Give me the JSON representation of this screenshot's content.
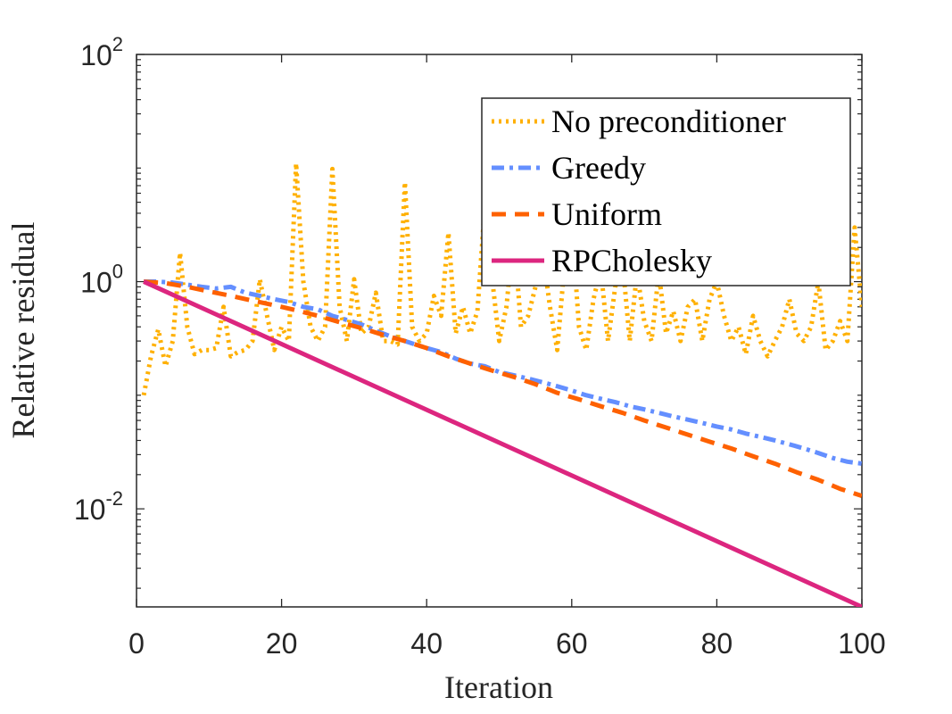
{
  "chart_data": {
    "type": "line",
    "title": "",
    "xlabel": "Iteration",
    "ylabel": "Relative residual",
    "xlim": [
      0,
      100
    ],
    "ylim": [
      0.00137,
      100
    ],
    "yscale": "log",
    "x_ticks": [
      "0",
      "20",
      "40",
      "60",
      "80",
      "100"
    ],
    "y_ticks": [
      {
        "base": "10",
        "exp": "2"
      },
      {
        "base": "10",
        "exp": "0"
      },
      {
        "base": "10",
        "exp": "-2"
      }
    ],
    "legend": "top-right",
    "grid": false,
    "series": [
      {
        "name": "No preconditioner",
        "color": "#FFB000",
        "style": "dotted",
        "points": [
          [
            1,
            0.1
          ],
          [
            2,
            0.22
          ],
          [
            3,
            0.38
          ],
          [
            4,
            0.18
          ],
          [
            5,
            0.3
          ],
          [
            6,
            1.8
          ],
          [
            7,
            0.4
          ],
          [
            8,
            0.23
          ],
          [
            9,
            0.25
          ],
          [
            10,
            0.25
          ],
          [
            11,
            0.26
          ],
          [
            12,
            0.6
          ],
          [
            13,
            0.22
          ],
          [
            14,
            0.24
          ],
          [
            15,
            0.25
          ],
          [
            16,
            0.3
          ],
          [
            17,
            1.05
          ],
          [
            18,
            0.5
          ],
          [
            19,
            0.25
          ],
          [
            20,
            0.4
          ],
          [
            21,
            0.3
          ],
          [
            22,
            11
          ],
          [
            23,
            1.0
          ],
          [
            24,
            0.4
          ],
          [
            25,
            0.3
          ],
          [
            26,
            0.4
          ],
          [
            27,
            9.8
          ],
          [
            28,
            0.6
          ],
          [
            29,
            0.3
          ],
          [
            30,
            1.05
          ],
          [
            31,
            0.35
          ],
          [
            32,
            0.4
          ],
          [
            33,
            0.8
          ],
          [
            34,
            0.3
          ],
          [
            35,
            0.3
          ],
          [
            36,
            0.28
          ],
          [
            37,
            7.5
          ],
          [
            38,
            0.4
          ],
          [
            39,
            0.3
          ],
          [
            40,
            0.35
          ],
          [
            41,
            0.75
          ],
          [
            42,
            0.5
          ],
          [
            43,
            2.7
          ],
          [
            44,
            0.35
          ],
          [
            45,
            0.6
          ],
          [
            46,
            0.35
          ],
          [
            47,
            0.55
          ],
          [
            48,
            4.5
          ],
          [
            49,
            1.1
          ],
          [
            50,
            0.3
          ],
          [
            51,
            0.6
          ],
          [
            52,
            2.8
          ],
          [
            53,
            0.4
          ],
          [
            54,
            0.5
          ],
          [
            55,
            0.9
          ],
          [
            56,
            1.8
          ],
          [
            57,
            0.6
          ],
          [
            58,
            0.25
          ],
          [
            59,
            1.4
          ],
          [
            60,
            3.2
          ],
          [
            61,
            0.4
          ],
          [
            62,
            0.25
          ],
          [
            63,
            0.7
          ],
          [
            64,
            1.3
          ],
          [
            65,
            0.3
          ],
          [
            66,
            0.9
          ],
          [
            67,
            1.5
          ],
          [
            68,
            0.3
          ],
          [
            69,
            1.2
          ],
          [
            70,
            0.45
          ],
          [
            71,
            0.3
          ],
          [
            72,
            1.2
          ],
          [
            73,
            0.35
          ],
          [
            74,
            0.55
          ],
          [
            75,
            0.3
          ],
          [
            76,
            0.6
          ],
          [
            77,
            0.7
          ],
          [
            78,
            0.3
          ],
          [
            79,
            0.7
          ],
          [
            80,
            1.0
          ],
          [
            81,
            0.5
          ],
          [
            82,
            0.3
          ],
          [
            83,
            0.4
          ],
          [
            84,
            0.23
          ],
          [
            85,
            0.5
          ],
          [
            86,
            0.3
          ],
          [
            87,
            0.22
          ],
          [
            88,
            0.3
          ],
          [
            89,
            0.4
          ],
          [
            90,
            0.7
          ],
          [
            91,
            0.35
          ],
          [
            92,
            0.3
          ],
          [
            93,
            0.4
          ],
          [
            94,
            1.0
          ],
          [
            95,
            0.25
          ],
          [
            96,
            0.3
          ],
          [
            97,
            0.45
          ],
          [
            98,
            0.3
          ],
          [
            99,
            3.0
          ],
          [
            100,
            0.6
          ]
        ]
      },
      {
        "name": "Greedy",
        "color": "#648FFF",
        "style": "dashdot",
        "points": [
          [
            1,
            1.0
          ],
          [
            3,
            1.0
          ],
          [
            5,
            0.98
          ],
          [
            7,
            0.94
          ],
          [
            9,
            0.9
          ],
          [
            11,
            0.87
          ],
          [
            13,
            0.9
          ],
          [
            15,
            0.8
          ],
          [
            17,
            0.75
          ],
          [
            19,
            0.7
          ],
          [
            21,
            0.66
          ],
          [
            23,
            0.6
          ],
          [
            25,
            0.57
          ],
          [
            27,
            0.5
          ],
          [
            29,
            0.46
          ],
          [
            31,
            0.42
          ],
          [
            33,
            0.37
          ],
          [
            35,
            0.33
          ],
          [
            37,
            0.3
          ],
          [
            40,
            0.26
          ],
          [
            42,
            0.24
          ],
          [
            44,
            0.21
          ],
          [
            46,
            0.19
          ],
          [
            48,
            0.18
          ],
          [
            50,
            0.16
          ],
          [
            52,
            0.15
          ],
          [
            54,
            0.14
          ],
          [
            56,
            0.13
          ],
          [
            58,
            0.12
          ],
          [
            60,
            0.11
          ],
          [
            62,
            0.1
          ],
          [
            64,
            0.093
          ],
          [
            66,
            0.087
          ],
          [
            68,
            0.08
          ],
          [
            70,
            0.075
          ],
          [
            72,
            0.07
          ],
          [
            74,
            0.065
          ],
          [
            76,
            0.061
          ],
          [
            78,
            0.057
          ],
          [
            80,
            0.053
          ],
          [
            82,
            0.05
          ],
          [
            84,
            0.046
          ],
          [
            86,
            0.043
          ],
          [
            88,
            0.04
          ],
          [
            90,
            0.037
          ],
          [
            92,
            0.034
          ],
          [
            94,
            0.031
          ],
          [
            96,
            0.028
          ],
          [
            98,
            0.026
          ],
          [
            100,
            0.025
          ]
        ]
      },
      {
        "name": "Uniform",
        "color": "#FE6100",
        "style": "dashed",
        "points": [
          [
            1,
            1.0
          ],
          [
            4,
            0.97
          ],
          [
            7,
            0.9
          ],
          [
            10,
            0.82
          ],
          [
            13,
            0.75
          ],
          [
            16,
            0.68
          ],
          [
            19,
            0.62
          ],
          [
            22,
            0.56
          ],
          [
            25,
            0.5
          ],
          [
            28,
            0.44
          ],
          [
            31,
            0.39
          ],
          [
            34,
            0.34
          ],
          [
            37,
            0.3
          ],
          [
            40,
            0.26
          ],
          [
            43,
            0.22
          ],
          [
            46,
            0.19
          ],
          [
            49,
            0.165
          ],
          [
            52,
            0.145
          ],
          [
            55,
            0.125
          ],
          [
            58,
            0.105
          ],
          [
            61,
            0.092
          ],
          [
            64,
            0.08
          ],
          [
            67,
            0.07
          ],
          [
            70,
            0.06
          ],
          [
            73,
            0.052
          ],
          [
            76,
            0.045
          ],
          [
            79,
            0.039
          ],
          [
            82,
            0.034
          ],
          [
            85,
            0.029
          ],
          [
            88,
            0.025
          ],
          [
            91,
            0.021
          ],
          [
            94,
            0.018
          ],
          [
            97,
            0.015
          ],
          [
            100,
            0.013
          ]
        ]
      },
      {
        "name": "RPCholesky",
        "color": "#DC267F",
        "style": "solid",
        "points": [
          [
            1,
            1.0
          ],
          [
            100,
            0.00137
          ]
        ]
      }
    ]
  }
}
